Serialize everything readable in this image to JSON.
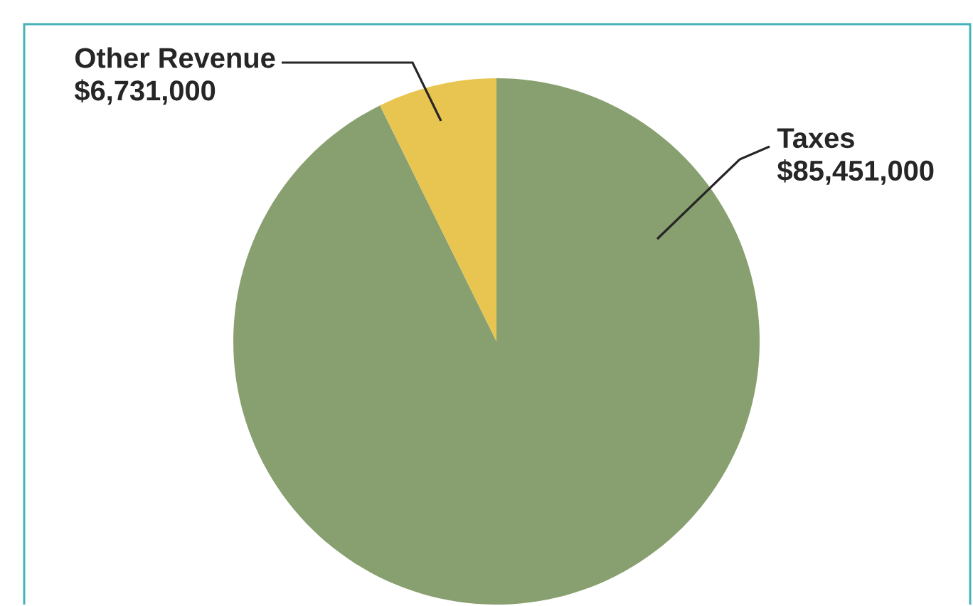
{
  "chart_data": {
    "type": "pie",
    "categories": [
      "Taxes",
      "Other Revenue"
    ],
    "values": [
      85451000,
      6731000
    ],
    "value_labels": [
      "$85,451,000",
      "$6,731,000"
    ],
    "colors": [
      "#88a070",
      "#e8c550"
    ]
  }
}
